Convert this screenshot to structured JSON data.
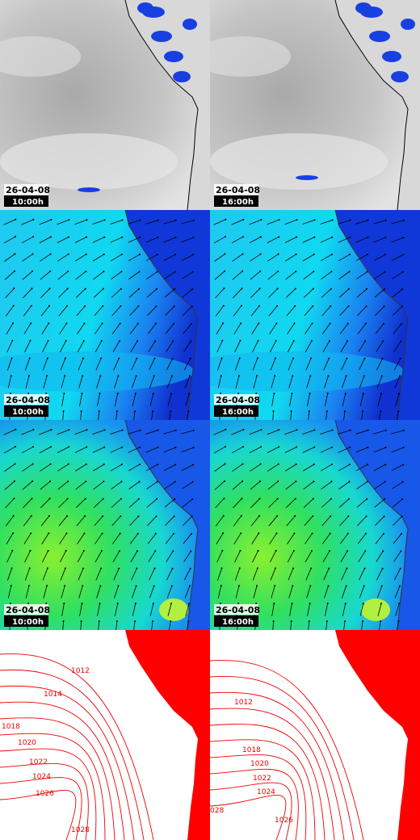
{
  "panels": [
    {
      "date": "26-04-08",
      "time": "10:00h"
    },
    {
      "date": "26-04-08",
      "time": "16:00h"
    },
    {
      "date": "26-04-08",
      "time": "10:00h"
    },
    {
      "date": "26-04-08",
      "time": "16:00h"
    },
    {
      "date": "26-04-08",
      "time": "10:00h"
    },
    {
      "date": "26-04-08",
      "time": "16:00h"
    }
  ],
  "isobars": {
    "left": [
      "1012",
      "1014",
      "1018",
      "1020",
      "1022",
      "1024",
      "1026",
      "1028"
    ],
    "right": [
      "1012",
      "1018",
      "1020",
      "1022",
      "1024",
      "1026",
      "028"
    ]
  }
}
